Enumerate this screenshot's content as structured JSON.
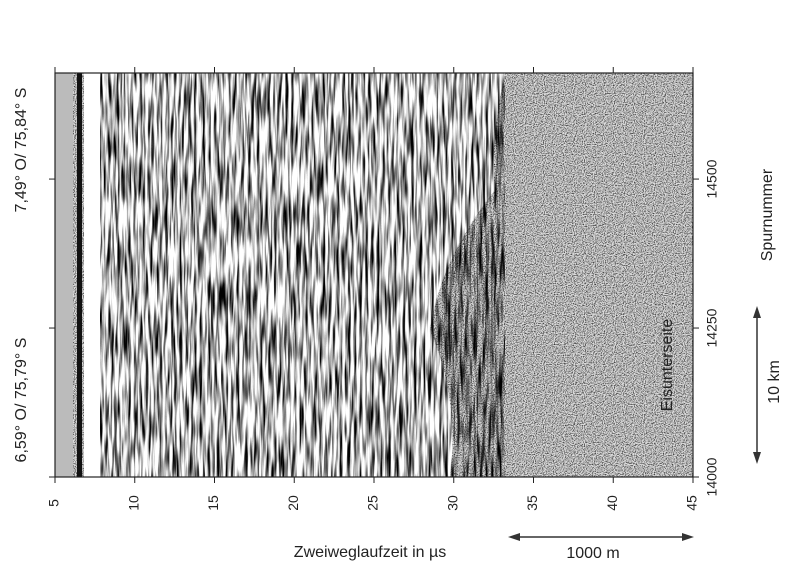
{
  "chart_data": {
    "type": "radargram",
    "x_label": "Zweiweglaufzeit in µs",
    "y_label": "Spurnummer",
    "xlim": [
      5,
      45
    ],
    "xticks": [
      5,
      10,
      15,
      20,
      25,
      30,
      35,
      40,
      45
    ],
    "ylim": [
      14000,
      14678
    ],
    "yticks": [
      14000,
      14250,
      14500
    ],
    "left_labels": {
      "bottom": "6,59° O/ 75,79° S",
      "top": "7,49° O/ 75,84° S"
    },
    "annotation": "Eisunterseite",
    "scale_x": "1000 m",
    "scale_y": "10 km"
  }
}
